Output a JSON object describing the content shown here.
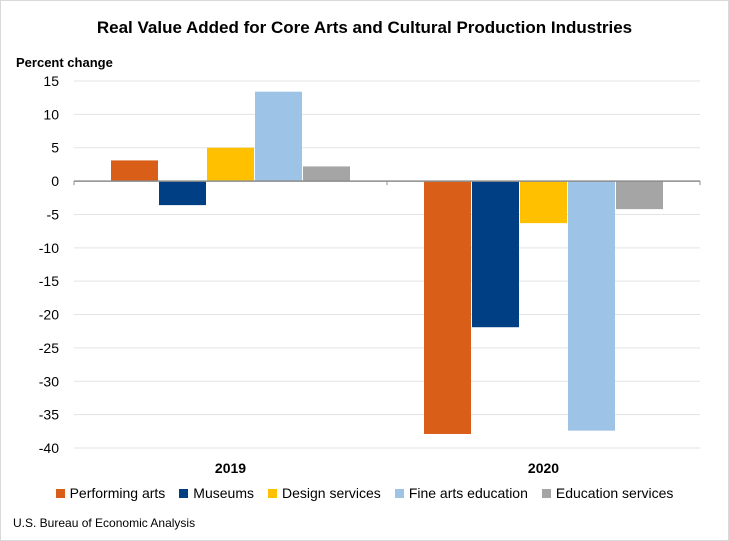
{
  "chart_data": {
    "type": "bar",
    "title": "Real Value Added for Core Arts and Cultural Production Industries",
    "ylabel": "Percent change",
    "xlabel": "",
    "categories": [
      "2019",
      "2020"
    ],
    "ylim": [
      -40,
      15
    ],
    "yticks": [
      15,
      10,
      5,
      0,
      -5,
      -10,
      -15,
      -20,
      -25,
      -30,
      -35,
      -40
    ],
    "grid": true,
    "legend_position": "bottom",
    "series": [
      {
        "name": "Performing arts",
        "color": "#d95f19",
        "values": [
          3.1,
          -37.9
        ]
      },
      {
        "name": "Museums",
        "color": "#003f84",
        "values": [
          -3.6,
          -21.9
        ]
      },
      {
        "name": "Design services",
        "color": "#ffc000",
        "values": [
          5.0,
          -6.3
        ]
      },
      {
        "name": "Fine arts education",
        "color": "#9dc3e6",
        "values": [
          13.4,
          -37.4
        ]
      },
      {
        "name": "Education services",
        "color": "#a5a5a5",
        "values": [
          2.2,
          -4.2
        ]
      }
    ]
  },
  "source": "U.S. Bureau of Economic Analysis"
}
